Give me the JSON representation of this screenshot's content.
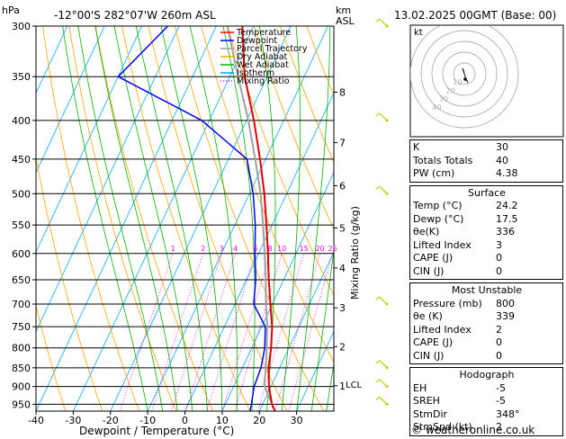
{
  "header": {
    "pressure_unit": "hPa",
    "location": "-12°00'S 282°07'W 260m ASL",
    "km_label": "km",
    "asl_label": "ASL",
    "datetime": "13.02.2025 00GMT (Base: 00)"
  },
  "colors": {
    "temperature": "#ff0000",
    "dewpoint": "#0000ff",
    "parcel": "#a0a0a0",
    "dry_adiabat": "#ffa500",
    "wet_adiabat": "#00b400",
    "isotherm": "#00aaff",
    "mixing_ratio": "#ff00ff",
    "profile_temp_line": "#e00000",
    "profile_dew_line": "#0000ff",
    "wind_barb": "#c8c800"
  },
  "chart_data": {
    "type": "line",
    "title": "Skew-T log-P diagram",
    "xlabel": "Dewpoint / Temperature (°C)",
    "ylabel": "hPa",
    "xlim": [
      -40,
      40
    ],
    "ylim": [
      970,
      300
    ],
    "x_ticks": [
      "-40",
      "-30",
      "-20",
      "-10",
      "0",
      "10",
      "20",
      "30"
    ],
    "x_tick_values": [
      -40,
      -30,
      -20,
      -10,
      0,
      10,
      20,
      30
    ],
    "pressure_levels": [
      300,
      350,
      400,
      450,
      500,
      550,
      600,
      650,
      700,
      750,
      800,
      850,
      900,
      950
    ],
    "pressure_labels": [
      "300",
      "350",
      "400",
      "450",
      "500",
      "550",
      "600",
      "650",
      "700",
      "750",
      "800",
      "850",
      "900",
      "950"
    ],
    "skew_deg_per_decade": 95,
    "legend": [
      "Temperature",
      "Dewpoint",
      "Parcel Trajectory",
      "Dry Adiabat",
      "Wet Adiabat",
      "Isotherm",
      "Mixing Ratio"
    ],
    "legend_position": "top-left",
    "mixing_ratio_axis_label": "Mixing Ratio (g/kg)",
    "mixing_ratio_values": [
      1,
      2,
      3,
      4,
      6,
      8,
      10,
      15,
      20,
      25
    ],
    "mixing_ratio_labels": [
      "1",
      "2",
      "3",
      "4",
      "6",
      "8",
      "10",
      "15",
      "20",
      "25"
    ],
    "mixing_ratio_label_pressure": 600,
    "km_ticks": [
      {
        "label": "8",
        "p": 367
      },
      {
        "label": "7",
        "p": 428
      },
      {
        "label": "6",
        "p": 488
      },
      {
        "label": "5",
        "p": 555
      },
      {
        "label": "4",
        "p": 627
      },
      {
        "label": "3",
        "p": 708
      },
      {
        "label": "2",
        "p": 797
      },
      {
        "label": "1",
        "p": 898
      }
    ],
    "lcl_label": "LCL",
    "lcl_pressure": 896,
    "series": [
      {
        "name": "Temperature",
        "points": [
          [
            970,
            24.2
          ],
          [
            950,
            22.5
          ],
          [
            900,
            19.5
          ],
          [
            850,
            17.0
          ],
          [
            800,
            15.2
          ],
          [
            750,
            12.8
          ],
          [
            700,
            9.5
          ],
          [
            650,
            6.0
          ],
          [
            600,
            2.5
          ],
          [
            550,
            -1.5
          ],
          [
            500,
            -6.0
          ],
          [
            450,
            -11.5
          ],
          [
            400,
            -18.0
          ],
          [
            350,
            -26.0
          ],
          [
            300,
            -33.0
          ]
        ]
      },
      {
        "name": "Dewpoint",
        "points": [
          [
            970,
            17.5
          ],
          [
            950,
            17.0
          ],
          [
            900,
            15.5
          ],
          [
            850,
            15.0
          ],
          [
            800,
            13.5
          ],
          [
            750,
            11.0
          ],
          [
            700,
            5.0
          ],
          [
            650,
            2.5
          ],
          [
            600,
            -1.0
          ],
          [
            550,
            -4.5
          ],
          [
            500,
            -9.0
          ],
          [
            450,
            -15.0
          ],
          [
            400,
            -32.0
          ],
          [
            350,
            -60.0
          ],
          [
            300,
            -53.0
          ]
        ]
      },
      {
        "name": "Parcel Trajectory",
        "points": [
          [
            970,
            24.2
          ],
          [
            896,
            18.0
          ],
          [
            850,
            16.3
          ],
          [
            800,
            14.0
          ],
          [
            750,
            11.5
          ],
          [
            700,
            8.3
          ],
          [
            650,
            5.2
          ],
          [
            600,
            1.6
          ],
          [
            550,
            -2.4
          ],
          [
            500,
            -7.0
          ],
          [
            450,
            -12.8
          ],
          [
            400,
            -19.5
          ],
          [
            350,
            -27.8
          ],
          [
            300,
            -37.0
          ]
        ]
      }
    ],
    "wind_barbs_pressure": [
      300,
      400,
      500,
      700,
      850,
      900,
      950
    ]
  },
  "hodograph": {
    "unit_label": "kt",
    "ring_labels": [
      "10",
      "20",
      "30",
      "40"
    ]
  },
  "indices": {
    "basic": [
      {
        "label": "K",
        "value": "30"
      },
      {
        "label": "Totals Totals",
        "value": "40"
      },
      {
        "label": "PW (cm)",
        "value": "4.38"
      }
    ],
    "surface": {
      "title": "Surface",
      "rows": [
        {
          "label": "Temp (°C)",
          "value": "24.2"
        },
        {
          "label": "Dewp (°C)",
          "value": "17.5"
        },
        {
          "label": "θe(K)",
          "value": "336"
        },
        {
          "label": "Lifted Index",
          "value": "3"
        },
        {
          "label": "CAPE (J)",
          "value": "0"
        },
        {
          "label": "CIN (J)",
          "value": "0"
        }
      ]
    },
    "most_unstable": {
      "title": "Most Unstable",
      "rows": [
        {
          "label": "Pressure (mb)",
          "value": "800"
        },
        {
          "label": "θe (K)",
          "value": "339"
        },
        {
          "label": "Lifted Index",
          "value": "2"
        },
        {
          "label": "CAPE (J)",
          "value": "0"
        },
        {
          "label": "CIN (J)",
          "value": "0"
        }
      ]
    },
    "hodograph": {
      "title": "Hodograph",
      "rows": [
        {
          "label": "EH",
          "value": "-5"
        },
        {
          "label": "SREH",
          "value": "-5"
        },
        {
          "label": "StmDir",
          "value": "348°"
        },
        {
          "label": "StmSpd (kt)",
          "value": "2"
        }
      ]
    }
  },
  "footer": {
    "copyright": "© weatheronline.co.uk"
  }
}
